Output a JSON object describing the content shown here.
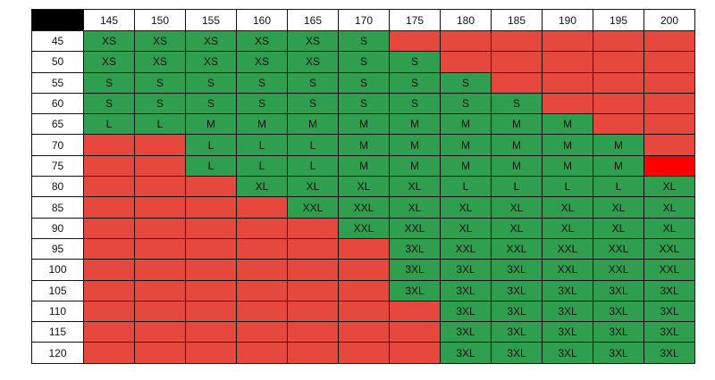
{
  "table": {
    "columns": [
      145,
      150,
      155,
      160,
      165,
      170,
      175,
      180,
      185,
      190,
      195,
      200
    ],
    "rows": [
      {
        "label": 45,
        "cells": [
          "XS",
          "XS",
          "XS",
          "XS",
          "XS",
          "S",
          null,
          null,
          null,
          null,
          null,
          null
        ]
      },
      {
        "label": 50,
        "cells": [
          "XS",
          "XS",
          "XS",
          "XS",
          "XS",
          "S",
          "S",
          null,
          null,
          null,
          null,
          null
        ]
      },
      {
        "label": 55,
        "cells": [
          "S",
          "S",
          "S",
          "S",
          "S",
          "S",
          "S",
          "S",
          null,
          null,
          null,
          null
        ]
      },
      {
        "label": 60,
        "cells": [
          "S",
          "S",
          "S",
          "S",
          "S",
          "S",
          "S",
          "S",
          "S",
          null,
          null,
          null
        ]
      },
      {
        "label": 65,
        "cells": [
          "L",
          "L",
          "M",
          "M",
          "M",
          "M",
          "M",
          "M",
          "M",
          "M",
          null,
          null
        ]
      },
      {
        "label": 70,
        "cells": [
          null,
          null,
          "L",
          "L",
          "L",
          "M",
          "M",
          "M",
          "M",
          "M",
          "M",
          null
        ]
      },
      {
        "label": 75,
        "cells": [
          null,
          null,
          "L",
          "L",
          "L",
          "M",
          "M",
          "M",
          "M",
          "M",
          "M",
          null
        ]
      },
      {
        "label": 80,
        "cells": [
          null,
          null,
          null,
          "XL",
          "XL",
          "XL",
          "XL",
          "L",
          "L",
          "L",
          "L",
          "XL"
        ]
      },
      {
        "label": 85,
        "cells": [
          null,
          null,
          null,
          null,
          "XXL",
          "XXL",
          "XL",
          "XL",
          "XL",
          "XL",
          "XL",
          "XL"
        ]
      },
      {
        "label": 90,
        "cells": [
          null,
          null,
          null,
          null,
          null,
          "XXL",
          "XXL",
          "XL",
          "XL",
          "XL",
          "XL",
          "XL"
        ]
      },
      {
        "label": 95,
        "cells": [
          null,
          null,
          null,
          null,
          null,
          null,
          "3XL",
          "XXL",
          "XXL",
          "XXL",
          "XXL",
          "XXL"
        ]
      },
      {
        "label": 100,
        "cells": [
          null,
          null,
          null,
          null,
          null,
          null,
          "3XL",
          "3XL",
          "3XL",
          "XXL",
          "XXL",
          "XXL"
        ]
      },
      {
        "label": 105,
        "cells": [
          null,
          null,
          null,
          null,
          null,
          null,
          "3XL",
          "3XL",
          "3XL",
          "3XL",
          "3XL",
          "3XL"
        ]
      },
      {
        "label": 110,
        "cells": [
          null,
          null,
          null,
          null,
          null,
          null,
          null,
          "3XL",
          "3XL",
          "3XL",
          "3XL",
          "3XL"
        ]
      },
      {
        "label": 115,
        "cells": [
          null,
          null,
          null,
          null,
          null,
          null,
          null,
          "3XL",
          "3XL",
          "3XL",
          "3XL",
          "3XL"
        ]
      },
      {
        "label": 120,
        "cells": [
          null,
          null,
          null,
          null,
          null,
          null,
          null,
          "3XL",
          "3XL",
          "3XL",
          "3XL",
          "3XL"
        ]
      }
    ]
  }
}
